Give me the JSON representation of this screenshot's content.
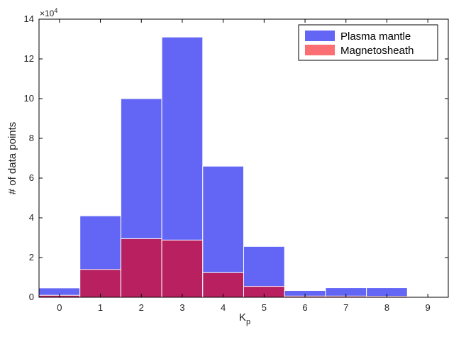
{
  "colors": {
    "plasma_mantle": "#6366f5",
    "magnetosheath_overlap": "#b8205f",
    "magnetosheath_legend": "#fb6f73",
    "bar_edge": "#ffffff",
    "axis": "#000000",
    "background": "#ffffff"
  },
  "chart_data": {
    "type": "bar",
    "categories": [
      "0",
      "1",
      "2",
      "3",
      "4",
      "5",
      "6",
      "7",
      "8",
      "9"
    ],
    "series": [
      {
        "name": "Plasma mantle",
        "values": [
          4700,
          41000,
          100000,
          131000,
          66000,
          25600,
          3400,
          4800,
          4800,
          0
        ]
      },
      {
        "name": "Magnetosheath",
        "values": [
          1000,
          14000,
          29500,
          28800,
          12400,
          5500,
          600,
          600,
          500,
          0
        ]
      }
    ],
    "title": "",
    "xlabel": "K",
    "xlabel_subscript": "p",
    "ylabel": "# of data points",
    "ylim": [
      0,
      140000
    ],
    "y_ticks": [
      "0",
      "2",
      "4",
      "6",
      "8",
      "10",
      "12",
      "14"
    ],
    "y_tick_values": [
      0,
      2,
      4,
      6,
      8,
      10,
      12,
      14
    ],
    "y_scale_label": "×10",
    "y_scale_exponent": "4",
    "y_scale_factor": 10000,
    "grid": false,
    "legend_position": "top-right",
    "overlay": true
  }
}
